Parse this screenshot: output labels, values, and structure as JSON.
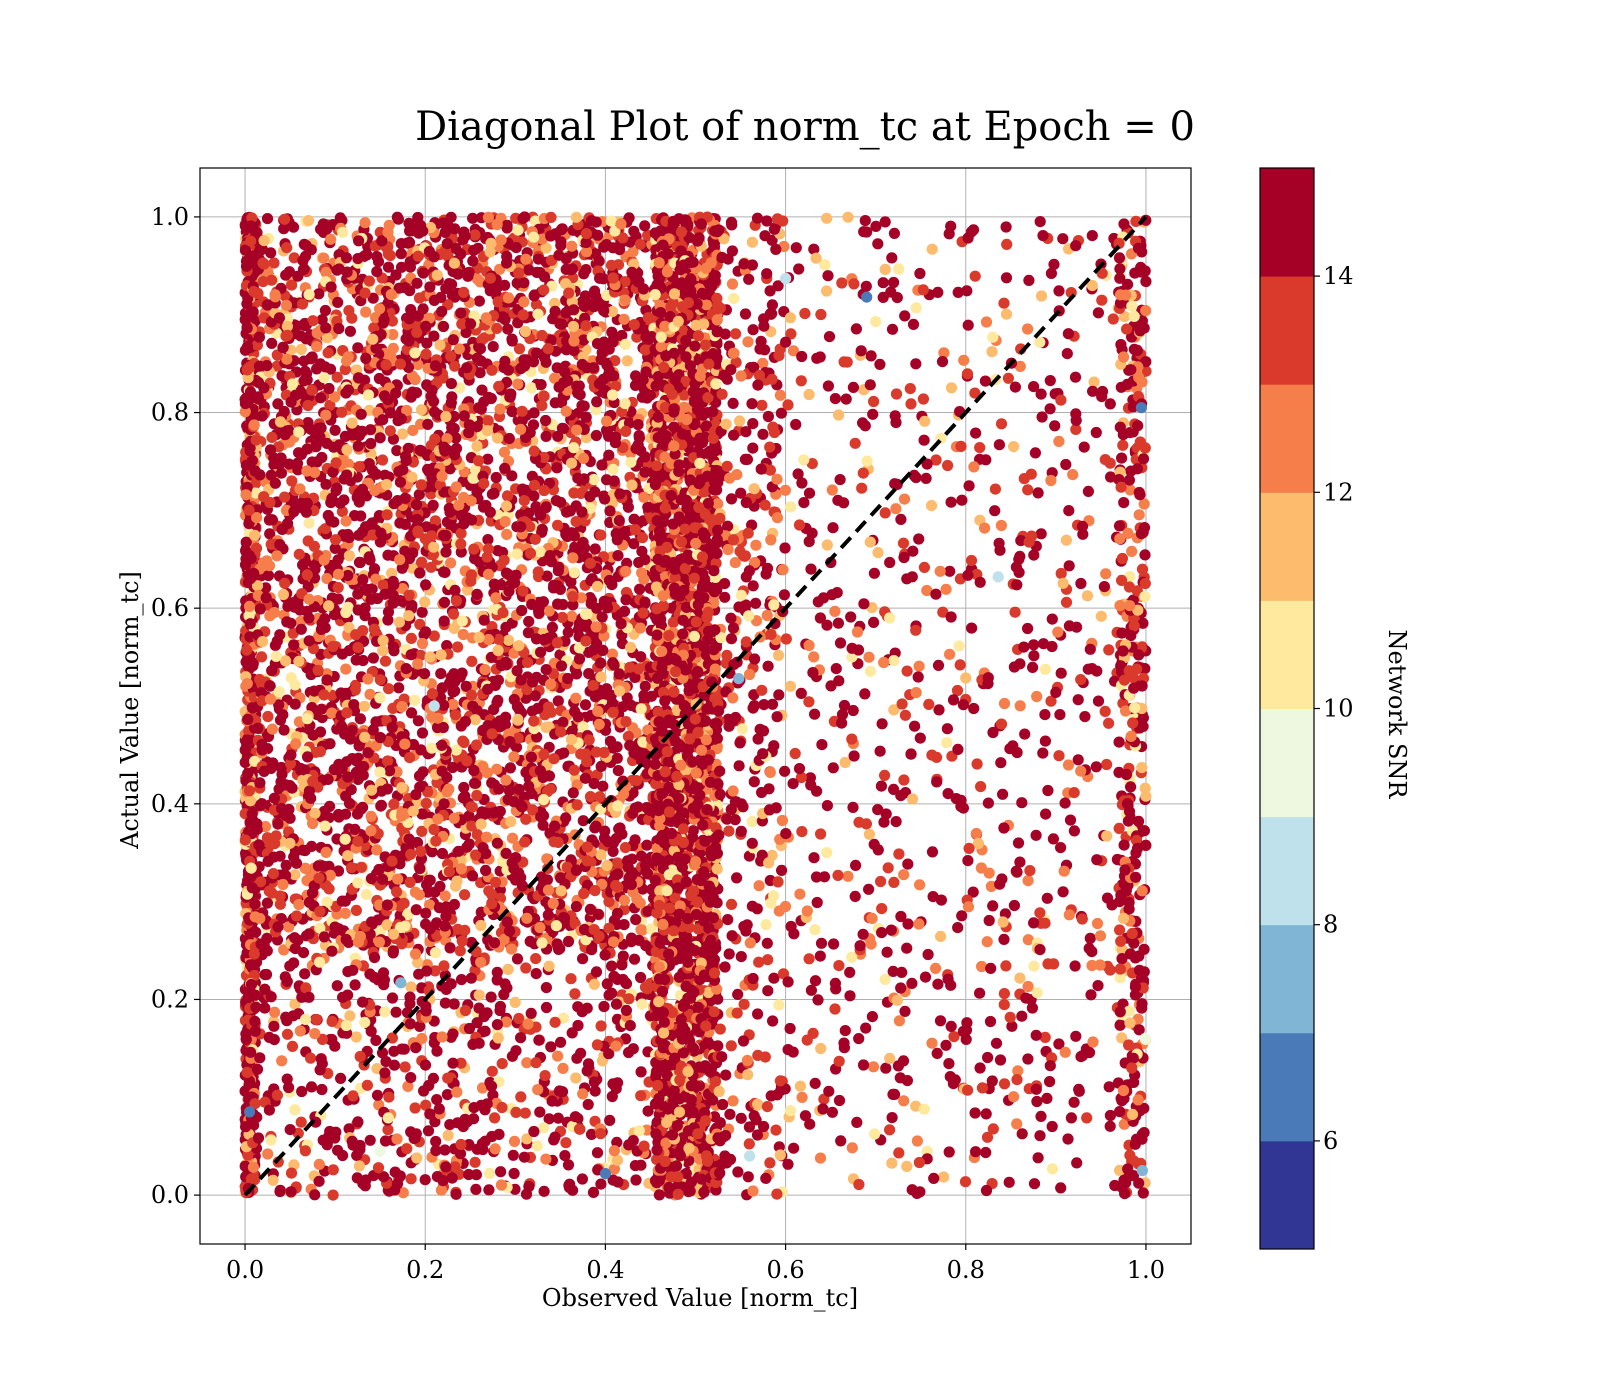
{
  "chart_data": {
    "type": "scatter",
    "title": "Diagonal Plot of norm_tc at Epoch = 0",
    "xlabel": "Observed Value [norm_tc]",
    "ylabel": "Actual Value [norm_tc]",
    "xlim": [
      -0.05,
      1.05
    ],
    "ylim": [
      -0.05,
      1.05
    ],
    "x_ticks": [
      "0.0",
      "0.2",
      "0.4",
      "0.6",
      "0.8",
      "1.0"
    ],
    "y_ticks": [
      "0.0",
      "0.2",
      "0.4",
      "0.6",
      "0.8",
      "1.0"
    ],
    "grid": true,
    "reference_line": {
      "style": "dashed",
      "color": "#000000",
      "x": [
        0,
        1
      ],
      "y": [
        0,
        1
      ]
    },
    "colorbar": {
      "label": "Network SNR",
      "range": [
        5,
        15
      ],
      "ticks": [
        "6",
        "8",
        "10",
        "12",
        "14"
      ],
      "bins": [
        {
          "from": 5,
          "to": 6,
          "color": "#313695"
        },
        {
          "from": 6,
          "to": 7,
          "color": "#4a7ab7"
        },
        {
          "from": 7,
          "to": 8,
          "color": "#80b5d6"
        },
        {
          "from": 8,
          "to": 9,
          "color": "#bfe1eb"
        },
        {
          "from": 9,
          "to": 10,
          "color": "#eef7df"
        },
        {
          "from": 10,
          "to": 11,
          "color": "#fee99e"
        },
        {
          "from": 11,
          "to": 12,
          "color": "#fcbb6d"
        },
        {
          "from": 12,
          "to": 13,
          "color": "#f57e4a"
        },
        {
          "from": 13,
          "to": 14,
          "color": "#d93a2c"
        },
        {
          "from": 14,
          "to": 15,
          "color": "#a50026"
        }
      ]
    },
    "point_clusters": [
      {
        "x_range": [
          0.0,
          0.012
        ],
        "y_range": [
          0.0,
          1.0
        ],
        "snr_mean": 14.4,
        "density": "very dense",
        "count": 700
      },
      {
        "x_range": [
          0.0,
          0.46
        ],
        "y_range": [
          0.25,
          1.0
        ],
        "snr_mean": 13.6,
        "density": "dense",
        "count": 4200
      },
      {
        "x_range": [
          0.0,
          0.46
        ],
        "y_range": [
          0.0,
          0.25
        ],
        "snr_mean": 13.4,
        "density": "medium",
        "count": 650
      },
      {
        "x_range": [
          0.455,
          0.525
        ],
        "y_range": [
          0.0,
          1.0
        ],
        "snr_mean": 14.2,
        "density": "very dense band",
        "count": 2400
      },
      {
        "x_range": [
          0.52,
          0.6
        ],
        "y_range": [
          0.0,
          1.0
        ],
        "snr_mean": 13.2,
        "density": "medium",
        "count": 420
      },
      {
        "x_range": [
          0.6,
          0.97
        ],
        "y_range": [
          0.0,
          1.0
        ],
        "snr_mean": 13.1,
        "density": "sparse",
        "count": 820
      },
      {
        "x_range": [
          0.97,
          1.0
        ],
        "y_range": [
          0.0,
          1.0
        ],
        "snr_mean": 13.6,
        "density": "dense edge",
        "count": 380
      }
    ],
    "notable_points": [
      {
        "x": 0.69,
        "y": 0.918,
        "snr": 6.5
      },
      {
        "x": 0.173,
        "y": 0.217,
        "snr": 7.0
      },
      {
        "x": 0.4,
        "y": 0.022,
        "snr": 6.6
      },
      {
        "x": 0.56,
        "y": 0.04,
        "snr": 8.3
      },
      {
        "x": 0.996,
        "y": 0.025,
        "snr": 7.3
      },
      {
        "x": 0.995,
        "y": 0.805,
        "snr": 6.8
      },
      {
        "x": 0.836,
        "y": 0.632,
        "snr": 8.5
      },
      {
        "x": 0.6,
        "y": 0.937,
        "snr": 8.6
      },
      {
        "x": 0.999,
        "y": 0.16,
        "snr": 9.6
      },
      {
        "x": 0.005,
        "y": 0.085,
        "snr": 6.2
      },
      {
        "x": 0.21,
        "y": 0.5,
        "snr": 8.6
      },
      {
        "x": 0.7,
        "y": 0.893,
        "snr": 10.4
      },
      {
        "x": 0.745,
        "y": 0.907,
        "snr": 10.6
      },
      {
        "x": 0.15,
        "y": 0.045,
        "snr": 9.6
      },
      {
        "x": 0.548,
        "y": 0.528,
        "snr": 7.8
      }
    ]
  }
}
